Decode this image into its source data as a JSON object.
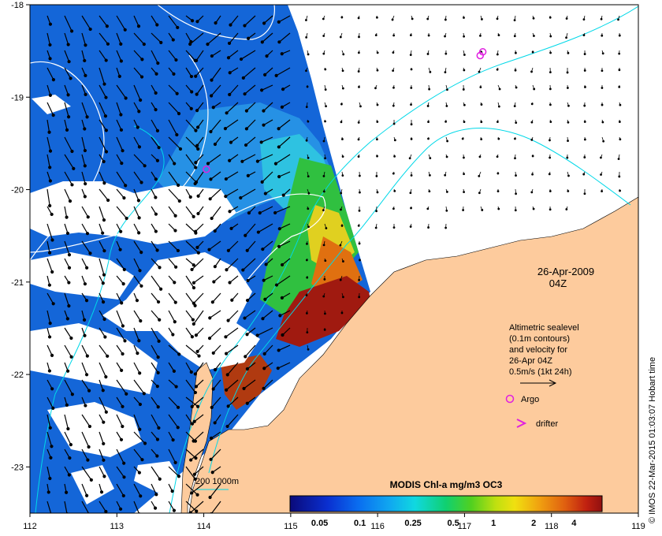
{
  "map": {
    "date_label": "26-Apr-2009",
    "time_label": "04Z",
    "x_ticks": [
      "112",
      "113",
      "114",
      "115",
      "116",
      "117",
      "118",
      "119"
    ],
    "y_ticks": [
      "-18",
      "-19",
      "-20",
      "-21",
      "-22",
      "-23"
    ],
    "x_range": [
      112,
      119
    ],
    "y_range": [
      -23.5,
      -18
    ]
  },
  "legend": {
    "sealevel_lines": [
      "Altimetric sealevel",
      "(0.1m contours)",
      "and velocity for",
      "26-Apr 04Z",
      "0.5m/s (1kt 24h)"
    ],
    "argo_label": "Argo",
    "drifter_label": "drifter",
    "bathy_label": "200  1000m"
  },
  "colorbar": {
    "title": "MODIS Chl-a mg/m3 OC3",
    "ticks": [
      "0.05",
      "0.1",
      "0.25",
      "0.5",
      "1",
      "2",
      "4"
    ],
    "colors": [
      "#0a0a7a",
      "#0a2fd0",
      "#0a6ef0",
      "#10a8f0",
      "#10d8e0",
      "#10d070",
      "#50d020",
      "#c0e010",
      "#f0e010",
      "#f0a010",
      "#e06010",
      "#c02010",
      "#901010"
    ]
  },
  "credit": "© IMOS 22-Mar-2015 01:03:07 Hobart time",
  "argo_floats": [
    {
      "lon": 114.03,
      "lat": -19.78
    },
    {
      "lon": 117.18,
      "lat": -18.55
    },
    {
      "lon": 117.21,
      "lat": -18.51
    }
  ],
  "colors": {
    "land": "#fdcb9d",
    "ocean_chl": "#1466d8",
    "contour": "#ffffff",
    "isobath": "#00d8e8",
    "argo": "#e020e0"
  }
}
